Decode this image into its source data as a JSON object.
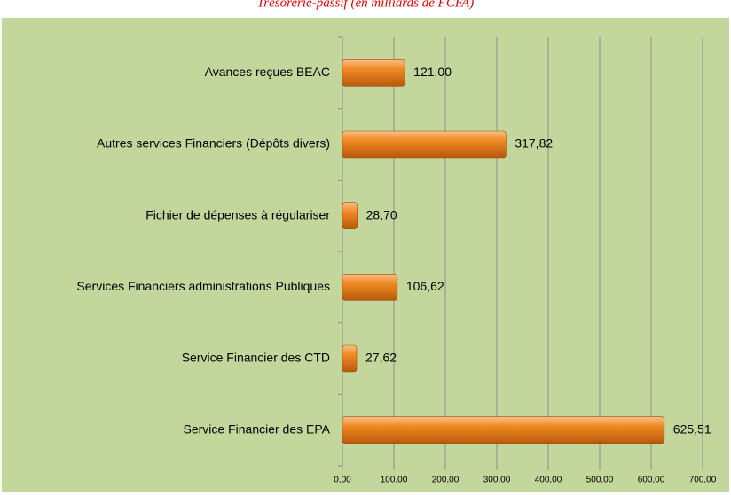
{
  "chart_data": {
    "type": "hbar",
    "title": "Trésorerie-passif (en milliards de FCFA)",
    "categories": [
      "Avances reçues BEAC",
      "Autres services Financiers (Dépôts divers)",
      "Fichier de dépenses à régulariser",
      "Services Financiers administrations Publiques",
      "Service Financier des CTD",
      "Service Financier des EPA"
    ],
    "values": [
      121.0,
      317.82,
      28.7,
      106.62,
      27.62,
      625.51
    ],
    "value_labels": [
      "121,00",
      "317,82",
      "28,70",
      "106,62",
      "27,62",
      "625,51"
    ],
    "color": "#f08a24",
    "xlim": [
      0,
      700
    ],
    "xticks": [
      {
        "value": 0,
        "label": "0,00"
      },
      {
        "value": 100,
        "label": "100,00"
      },
      {
        "value": 200,
        "label": "200,00"
      },
      {
        "value": 300,
        "label": "300,00"
      },
      {
        "value": 400,
        "label": "400,00"
      },
      {
        "value": 500,
        "label": "500,00"
      },
      {
        "value": 600,
        "label": "600,00"
      },
      {
        "value": 700,
        "label": "700,00"
      }
    ],
    "grid": true
  }
}
